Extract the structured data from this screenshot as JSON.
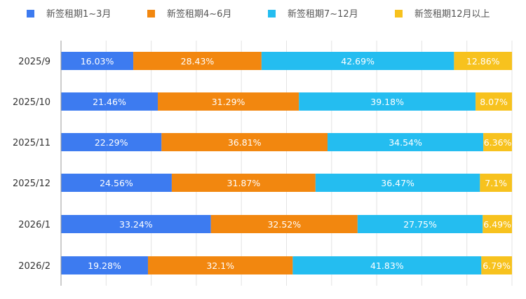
{
  "chart_data": {
    "type": "bar",
    "orientation": "horizontal",
    "stacked": true,
    "percent": true,
    "categories": [
      "2025/9",
      "2025/10",
      "2025/11",
      "2025/12",
      "2026/1",
      "2026/2"
    ],
    "series": [
      {
        "name": "新签租期1~3月",
        "color": "#3d7bf0",
        "values": [
          16.03,
          21.46,
          22.29,
          24.56,
          33.24,
          19.28
        ],
        "labels": [
          "16.03%",
          "21.46%",
          "22.29%",
          "24.56%",
          "33.24%",
          "19.28%"
        ]
      },
      {
        "name": "新签租期4~6月",
        "color": "#f2870f",
        "values": [
          28.43,
          31.29,
          36.81,
          31.87,
          32.52,
          32.1
        ],
        "labels": [
          "28.43%",
          "31.29%",
          "36.81%",
          "31.87%",
          "32.52%",
          "32.1%"
        ]
      },
      {
        "name": "新签租期7~12月",
        "color": "#24bdf0",
        "values": [
          42.69,
          39.18,
          34.54,
          36.47,
          27.75,
          41.83
        ],
        "labels": [
          "42.69%",
          "39.18%",
          "34.54%",
          "36.47%",
          "27.75%",
          "41.83%"
        ]
      },
      {
        "name": "新签租期12月以上",
        "color": "#f7c21e",
        "values": [
          12.86,
          8.07,
          6.36,
          7.1,
          6.49,
          6.79
        ],
        "labels": [
          "12.86%",
          "8.07%",
          "6.36%",
          "7.1%",
          "6.49%",
          "6.79%"
        ]
      }
    ],
    "xlim": [
      0,
      100
    ],
    "grid": true,
    "legend_position": "top"
  }
}
